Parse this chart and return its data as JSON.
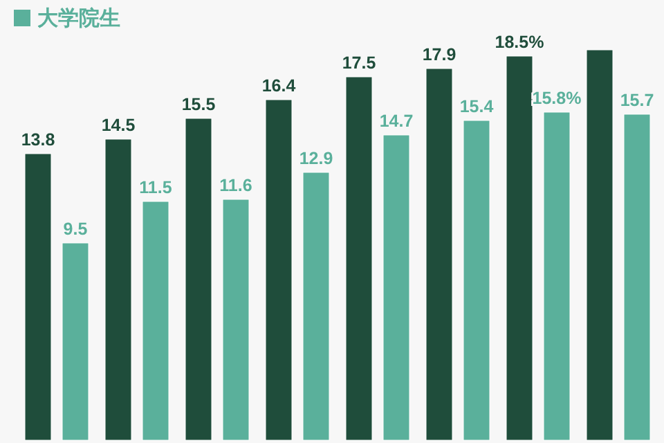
{
  "chart_data": {
    "type": "bar",
    "categories": [
      null,
      null,
      null,
      null,
      null,
      null,
      null,
      null
    ],
    "legend": "top left",
    "series": [
      {
        "color": "#1f4d3b",
        "values": [
          13.8,
          14.5,
          15.5,
          16.4,
          17.5,
          17.9,
          18.5,
          18.8
        ],
        "value_labels": [
          "13.8",
          "14.5",
          "15.5",
          "16.4",
          "17.5",
          "17.9",
          "18.5%",
          null
        ]
      },
      {
        "name": "大学院生",
        "color": "#5ab09b",
        "values": [
          9.5,
          11.5,
          11.6,
          12.9,
          14.7,
          15.4,
          15.8,
          15.7
        ],
        "value_labels": [
          "9.5",
          "11.5",
          "11.6",
          "12.9",
          "14.7",
          "15.4",
          "15.8%",
          "15.7"
        ]
      }
    ]
  }
}
